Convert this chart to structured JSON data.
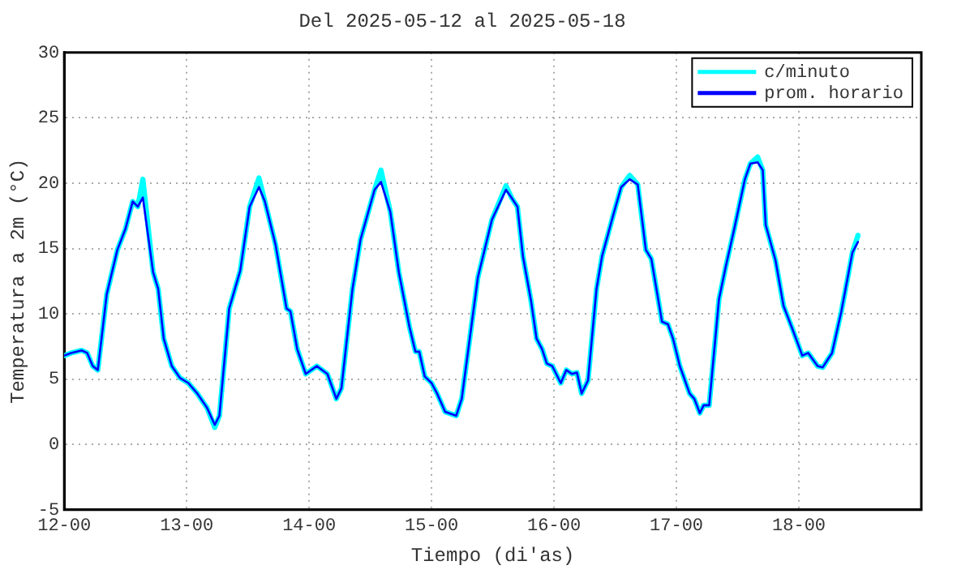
{
  "chart_data": {
    "type": "line",
    "title": "Del 2025-05-12 al 2025-05-18",
    "xlabel": "Tiempo (di'as)",
    "ylabel": "Temperatura a 2m (°C)",
    "x": [
      "2025-05-12T00:00",
      "2025-05-12T01:20",
      "2025-05-12T03:25",
      "2025-05-12T04:30",
      "2025-05-12T05:35",
      "2025-05-12T06:35",
      "2025-05-12T08:20",
      "2025-05-12T10:25",
      "2025-05-12T12:00",
      "2025-05-12T13:25",
      "2025-05-12T14:25",
      "2025-05-12T15:25",
      "2025-05-12T17:25",
      "2025-05-12T18:25",
      "2025-05-12T19:30",
      "2025-05-12T21:05",
      "2025-05-12T22:40",
      "2025-05-13T00:20",
      "2025-05-13T02:05",
      "2025-05-13T04:00",
      "2025-05-13T05:30",
      "2025-05-13T06:25",
      "2025-05-13T08:20",
      "2025-05-13T10:30",
      "2025-05-13T12:20",
      "2025-05-13T14:10",
      "2025-05-13T15:20",
      "2025-05-13T17:25",
      "2025-05-13T19:35",
      "2025-05-13T20:20",
      "2025-05-13T21:40",
      "2025-05-13T23:20",
      "2025-05-14T01:30",
      "2025-05-14T03:35",
      "2025-05-14T05:20",
      "2025-05-14T06:20",
      "2025-05-14T08:30",
      "2025-05-14T10:05",
      "2025-05-14T12:50",
      "2025-05-14T14:05",
      "2025-05-14T15:55",
      "2025-05-14T17:35",
      "2025-05-14T19:40",
      "2025-05-14T20:50",
      "2025-05-14T21:35",
      "2025-05-14T22:40",
      "2025-05-15T00:00",
      "2025-05-15T01:05",
      "2025-05-15T02:40",
      "2025-05-15T04:50",
      "2025-05-15T05:55",
      "2025-05-15T09:05",
      "2025-05-15T11:50",
      "2025-05-15T14:35",
      "2025-05-15T15:40",
      "2025-05-15T16:50",
      "2025-05-15T17:55",
      "2025-05-15T19:30",
      "2025-05-15T20:35",
      "2025-05-15T21:40",
      "2025-05-15T22:35",
      "2025-05-15T23:40",
      "2025-05-16T01:20",
      "2025-05-16T02:25",
      "2025-05-16T03:30",
      "2025-05-16T04:30",
      "2025-05-16T05:25",
      "2025-05-16T06:40",
      "2025-05-16T08:20",
      "2025-05-16T09:25",
      "2025-05-16T11:30",
      "2025-05-16T13:10",
      "2025-05-16T14:50",
      "2025-05-16T16:25",
      "2025-05-16T18:00",
      "2025-05-16T19:05",
      "2025-05-16T21:10",
      "2025-05-16T22:20",
      "2025-05-16T23:20",
      "2025-05-17T00:40",
      "2025-05-17T02:35",
      "2025-05-17T03:30",
      "2025-05-17T04:35",
      "2025-05-17T05:20",
      "2025-05-17T06:25",
      "2025-05-17T08:20",
      "2025-05-17T09:40",
      "2025-05-17T11:20",
      "2025-05-17T13:25",
      "2025-05-17T14:30",
      "2025-05-17T15:55",
      "2025-05-17T16:55",
      "2025-05-17T17:30",
      "2025-05-17T19:25",
      "2025-05-17T21:00",
      "2025-05-17T22:35",
      "2025-05-18T00:40",
      "2025-05-18T01:50",
      "2025-05-18T03:40",
      "2025-05-18T04:40",
      "2025-05-18T06:30",
      "2025-05-18T08:20",
      "2025-05-18T10:30",
      "2025-05-18T11:35"
    ],
    "series": [
      {
        "name": "c/minuto",
        "color": "#00ffff",
        "values": [
          6.8,
          7.0,
          7.2,
          7.0,
          6.0,
          5.7,
          11.5,
          14.9,
          16.5,
          18.6,
          18.2,
          20.3,
          13.2,
          11.9,
          8.1,
          6.0,
          5.1,
          4.7,
          3.9,
          2.8,
          1.3,
          2.2,
          10.4,
          13.3,
          18.2,
          20.4,
          18.6,
          15.3,
          10.4,
          10.2,
          7.3,
          5.4,
          6.0,
          5.4,
          3.5,
          4.3,
          11.9,
          15.7,
          19.5,
          21.0,
          17.8,
          13.2,
          9.0,
          7.1,
          7.1,
          5.2,
          4.7,
          3.9,
          2.5,
          2.2,
          3.5,
          12.8,
          17.2,
          19.8,
          18.9,
          18.2,
          14.4,
          11.0,
          8.1,
          7.3,
          6.2,
          6.0,
          4.7,
          5.7,
          5.4,
          5.5,
          3.9,
          4.9,
          11.9,
          14.4,
          17.4,
          19.7,
          20.6,
          19.9,
          14.9,
          14.2,
          9.4,
          9.2,
          8.1,
          6.0,
          3.9,
          3.5,
          2.4,
          3.0,
          3.0,
          11.1,
          13.6,
          16.5,
          20.3,
          21.5,
          22.0,
          21.0,
          16.8,
          14.1,
          10.6,
          9.0,
          6.8,
          7.0,
          6.0,
          5.9,
          7.0,
          10.2,
          14.7,
          16.0
        ]
      },
      {
        "name": "prom. horario",
        "color": "#0000ff",
        "values": [
          6.8,
          7.0,
          7.2,
          7.0,
          6.0,
          5.7,
          11.5,
          14.9,
          16.5,
          18.6,
          18.2,
          18.9,
          13.2,
          11.9,
          8.1,
          6.0,
          5.1,
          4.7,
          3.9,
          2.8,
          1.5,
          2.2,
          10.4,
          13.3,
          18.2,
          19.7,
          18.6,
          15.3,
          10.4,
          10.2,
          7.3,
          5.4,
          6.0,
          5.4,
          3.5,
          4.3,
          11.9,
          15.7,
          19.5,
          20.1,
          17.8,
          13.2,
          9.0,
          7.1,
          7.1,
          5.2,
          4.7,
          3.9,
          2.5,
          2.2,
          3.5,
          12.8,
          17.2,
          19.5,
          18.9,
          18.2,
          14.4,
          11.0,
          8.1,
          7.3,
          6.2,
          6.0,
          4.7,
          5.7,
          5.4,
          5.5,
          3.9,
          4.9,
          11.9,
          14.4,
          17.4,
          19.7,
          20.3,
          19.9,
          14.9,
          14.2,
          9.4,
          9.2,
          8.1,
          6.0,
          3.9,
          3.5,
          2.4,
          3.0,
          3.0,
          11.1,
          13.6,
          16.5,
          20.3,
          21.5,
          21.6,
          21.0,
          16.8,
          14.1,
          10.6,
          9.0,
          6.8,
          7.0,
          6.0,
          5.9,
          7.0,
          10.2,
          14.7,
          15.5
        ]
      }
    ],
    "xlim": [
      "2025-05-12T00:00",
      "2025-05-19T00:00"
    ],
    "xticks": [
      {
        "value": "2025-05-12T00:00",
        "label": "12-00"
      },
      {
        "value": "2025-05-13T00:00",
        "label": "13-00"
      },
      {
        "value": "2025-05-14T00:00",
        "label": "14-00"
      },
      {
        "value": "2025-05-15T00:00",
        "label": "15-00"
      },
      {
        "value": "2025-05-16T00:00",
        "label": "16-00"
      },
      {
        "value": "2025-05-17T00:00",
        "label": "17-00"
      },
      {
        "value": "2025-05-18T00:00",
        "label": "18-00"
      }
    ],
    "ylim": [
      -5,
      30
    ],
    "yticks": [
      -5,
      0,
      5,
      10,
      15,
      20,
      25,
      30
    ],
    "grid": true,
    "legend": "top right",
    "marker": "none",
    "line_style": "solid"
  }
}
